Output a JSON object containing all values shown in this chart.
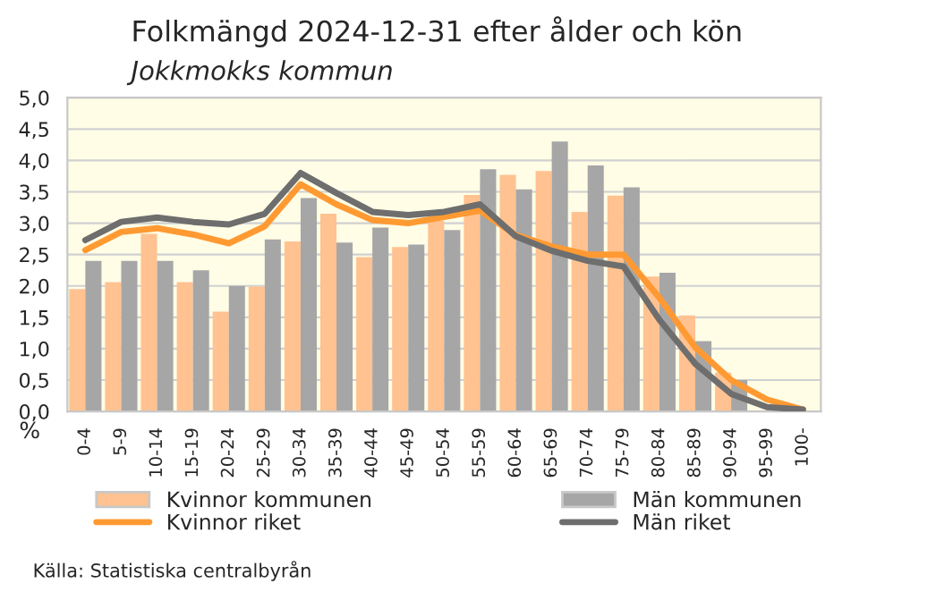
{
  "chart_data": {
    "type": "bar",
    "title": "Folkmängd 2024-12-31 efter ålder och kön",
    "subtitle": "Jokkmokks kommun",
    "ylabel": "%",
    "categories": [
      "0-4",
      "5-9",
      "10-14",
      "15-19",
      "20-24",
      "25-29",
      "30-34",
      "35-39",
      "40-44",
      "45-49",
      "50-54",
      "55-59",
      "60-64",
      "65-69",
      "70-74",
      "75-79",
      "80-84",
      "85-89",
      "90-94",
      "95-99",
      "100-"
    ],
    "series": [
      {
        "name": "Kvinnor kommunen",
        "color": "#ffc290",
        "values": [
          1.95,
          2.06,
          2.83,
          2.06,
          1.59,
          1.99,
          2.71,
          3.15,
          2.46,
          2.62,
          3.04,
          3.45,
          3.77,
          3.83,
          3.18,
          3.44,
          2.15,
          1.53,
          0.62,
          null,
          0
        ]
      },
      {
        "name": "Män kommunen",
        "color": "#a6a6a6",
        "values": [
          2.4,
          2.4,
          2.4,
          2.25,
          2.0,
          2.74,
          3.4,
          2.69,
          2.93,
          2.66,
          2.89,
          3.86,
          3.54,
          4.3,
          3.92,
          3.57,
          2.21,
          1.12,
          0.5,
          0,
          0
        ]
      },
      {
        "name": "Kvinnor riket",
        "type": "line",
        "color": "#ff9a33",
        "values": [
          2.57,
          2.86,
          2.92,
          2.82,
          2.68,
          2.95,
          3.62,
          3.3,
          3.05,
          3.0,
          3.1,
          3.2,
          2.81,
          2.63,
          2.5,
          2.5,
          1.81,
          1.02,
          0.5,
          0.19,
          0.03
        ]
      },
      {
        "name": "Män riket",
        "type": "line",
        "color": "#6e6e6e",
        "values": [
          2.73,
          3.02,
          3.09,
          3.02,
          2.98,
          3.15,
          3.8,
          3.48,
          3.18,
          3.13,
          3.18,
          3.3,
          2.79,
          2.56,
          2.4,
          2.31,
          1.46,
          0.76,
          0.28,
          0.07,
          0.03
        ]
      }
    ],
    "ylim": [
      0,
      5
    ],
    "yticks": [
      {
        "value": 0,
        "label": "0,0"
      },
      {
        "value": 0.5,
        "label": "0,5"
      },
      {
        "value": 1,
        "label": "1,0"
      },
      {
        "value": 1.5,
        "label": "1,5"
      },
      {
        "value": 2,
        "label": "2,0"
      },
      {
        "value": 2.5,
        "label": "2,5"
      },
      {
        "value": 3,
        "label": "3,0"
      },
      {
        "value": 3.5,
        "label": "3,5"
      },
      {
        "value": 4,
        "label": "4,0"
      },
      {
        "value": 4.5,
        "label": "4,5"
      },
      {
        "value": 5,
        "label": "5,0"
      }
    ],
    "grid": "y",
    "legend": "bottom",
    "annotations": [
      "Källa: Statistiska centralbyrån"
    ]
  }
}
